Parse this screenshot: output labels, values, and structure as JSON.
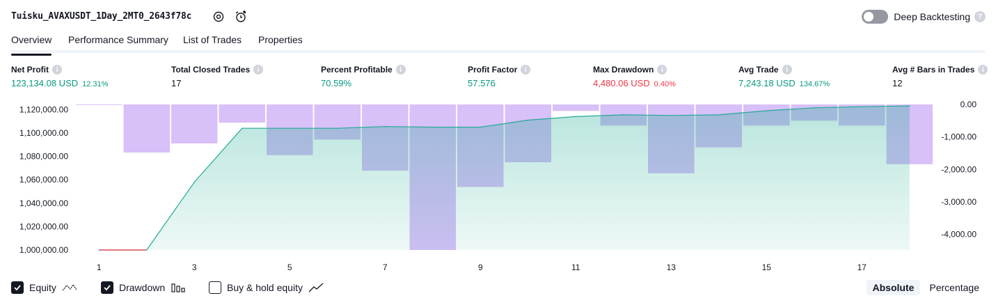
{
  "header": {
    "title": "Tuisku_AVAXUSDT_1Day_2MT0_2643f78c",
    "deep_backtesting_label": "Deep Backtesting",
    "deep_backtesting_enabled": false,
    "help_glyph": "?"
  },
  "tabs": [
    {
      "label": "Overview",
      "active": true
    },
    {
      "label": "Performance Summary",
      "active": false
    },
    {
      "label": "List of Trades",
      "active": false
    },
    {
      "label": "Properties",
      "active": false
    }
  ],
  "metrics": [
    {
      "label": "Net Profit",
      "value": "123,134.08 USD",
      "pct": "12.31%",
      "tone": "green"
    },
    {
      "label": "Total Closed Trades",
      "value": "17",
      "pct": "",
      "tone": "dark"
    },
    {
      "label": "Percent Profitable",
      "value": "70.59%",
      "pct": "",
      "tone": "green"
    },
    {
      "label": "Profit Factor",
      "value": "57.576",
      "pct": "",
      "tone": "green"
    },
    {
      "label": "Max Drawdown",
      "value": "4,480.06 USD",
      "pct": "0.40%",
      "tone": "red"
    },
    {
      "label": "Avg Trade",
      "value": "7,243.18 USD",
      "pct": "134.67%",
      "tone": "green"
    },
    {
      "label": "Avg # Bars in Trades",
      "value": "12",
      "pct": "",
      "tone": "dark"
    }
  ],
  "chart_data": {
    "type": "area",
    "x": [
      1,
      2,
      3,
      4,
      5,
      6,
      7,
      8,
      9,
      10,
      11,
      12,
      13,
      14,
      15,
      16,
      17,
      18
    ],
    "x_ticks": [
      "1",
      "3",
      "5",
      "7",
      "9",
      "11",
      "13",
      "15",
      "17"
    ],
    "series": [
      {
        "axis": "left",
        "values": [
          1000000,
          1000000,
          1058000,
          1104000,
          1104000,
          1104000,
          1105500,
          1105000,
          1105000,
          1111000,
          1114000,
          1115500,
          1115000,
          1115500,
          1119000,
          1121500,
          1122500,
          1123134.08
        ],
        "color": "#22ab94"
      },
      {
        "axis": "right",
        "type": "bar",
        "values": [
          0,
          -1480,
          -1200,
          -560,
          -1560,
          -1080,
          -2040,
          -4480.06,
          -2540,
          -1780,
          -200,
          -650,
          -2120,
          -1320,
          -650,
          -500,
          -650,
          -1840
        ],
        "color": "#c9a7f5"
      }
    ],
    "left_ticks": [
      "1,120,000.00",
      "1,100,000.00",
      "1,080,000.00",
      "1,060,000.00",
      "1,040,000.00",
      "1,020,000.00",
      "1,000,000.00"
    ],
    "right_ticks": [
      "0.00",
      "-1,000.00",
      "-2,000.00",
      "-3,000.00",
      "-4,000.00"
    ],
    "left_ylim": [
      1000000,
      1122000
    ],
    "right_ylim": [
      -4480.06,
      0
    ]
  },
  "legend": [
    {
      "label": "Equity",
      "checked": true,
      "icon": "equity-line-icon"
    },
    {
      "label": "Drawdown",
      "checked": true,
      "icon": "drawdown-bars-icon"
    },
    {
      "label": "Buy & hold equity",
      "checked": false,
      "icon": "buy-hold-line-icon"
    }
  ],
  "scale_modes": [
    {
      "label": "Absolute",
      "active": true
    },
    {
      "label": "Percentage",
      "active": false
    }
  ],
  "colors": {
    "accent_green": "#089981",
    "accent_red": "#f23645",
    "drawdown_purple": "#c9a7f5",
    "equity_line": "#22ab94"
  }
}
